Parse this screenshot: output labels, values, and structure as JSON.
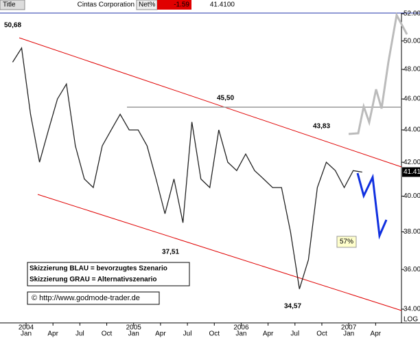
{
  "chart_data": {
    "type": "line",
    "title": "Cintas Corporation",
    "header": {
      "title_label": "Title",
      "net_label": "Net%",
      "net_value": "-1.59",
      "last": "41.4100"
    },
    "log_scale": true,
    "color": "#222222",
    "x": [
      "2003-11",
      "2003-12",
      "2004-01",
      "2004-02",
      "2004-03",
      "2004-04",
      "2004-05",
      "2004-06",
      "2004-07",
      "2004-08",
      "2004-09",
      "2004-10",
      "2004-11",
      "2004-12",
      "2005-01",
      "2005-02",
      "2005-03",
      "2005-04",
      "2005-05",
      "2005-06",
      "2005-07",
      "2005-08",
      "2005-09",
      "2005-10",
      "2005-11",
      "2005-12",
      "2006-01",
      "2006-02",
      "2006-03",
      "2006-04",
      "2006-05",
      "2006-06",
      "2006-07",
      "2006-08",
      "2006-09",
      "2006-10",
      "2006-11",
      "2006-12",
      "2007-01",
      "2007-02"
    ],
    "values": [
      48.5,
      49.5,
      45,
      42,
      44,
      46,
      47,
      43,
      41,
      40.5,
      43,
      44,
      45,
      44,
      44,
      43,
      41,
      39,
      41,
      38.5,
      44.5,
      41,
      40.5,
      44,
      42,
      41.5,
      42.5,
      41.5,
      41,
      40.5,
      40.5,
      38,
      35,
      36.5,
      40.5,
      42,
      41.5,
      40.5,
      41.5,
      41.41
    ],
    "ylim": [
      34,
      52
    ],
    "yticks": [
      {
        "value": 34,
        "label": "34.0000"
      },
      {
        "value": 36,
        "label": "36.0000"
      },
      {
        "value": 38,
        "label": "38.0000"
      },
      {
        "value": 40,
        "label": "40.0000"
      },
      {
        "value": 42,
        "label": "42.0000"
      },
      {
        "value": 44,
        "label": "44.0000"
      },
      {
        "value": 46,
        "label": "46.0000"
      },
      {
        "value": 48,
        "label": "48.0000"
      },
      {
        "value": 50,
        "label": "50.0000"
      },
      {
        "value": 52,
        "label": "52.0000"
      }
    ],
    "xticks": [
      {
        "value": "2004-01",
        "label": "Jan"
      },
      {
        "value": "2004-04",
        "label": "Apr"
      },
      {
        "value": "2004-07",
        "label": "Jul"
      },
      {
        "value": "2004-10",
        "label": "Oct"
      },
      {
        "value": "2005-01",
        "label": "Jan"
      },
      {
        "value": "2005-04",
        "label": "Apr"
      },
      {
        "value": "2005-07",
        "label": "Jul"
      },
      {
        "value": "2005-10",
        "label": "Oct"
      },
      {
        "value": "2006-01",
        "label": "Jan"
      },
      {
        "value": "2006-04",
        "label": "Apr"
      },
      {
        "value": "2006-07",
        "label": "Jul"
      },
      {
        "value": "2006-10",
        "label": "Oct"
      },
      {
        "value": "2007-01",
        "label": "Jan"
      },
      {
        "value": "2007-04",
        "label": "Apr"
      }
    ],
    "year_labels": [
      {
        "value": "2004-01",
        "label": "2004"
      },
      {
        "value": "2005-01",
        "label": "2005"
      },
      {
        "value": "2006-01",
        "label": "2006"
      },
      {
        "value": "2007-01",
        "label": "2007"
      }
    ],
    "axis_label": "LOG",
    "annotations": [
      "50,68",
      "45,50",
      "37,51",
      "34,57",
      "43,83",
      "57%"
    ],
    "legend": [
      "Skizzierung BLAU = bevorzugtes Szenario",
      "Skizzierung GRAU = Alternativszenario"
    ],
    "source": "© http://www.godmode-trader.de"
  }
}
